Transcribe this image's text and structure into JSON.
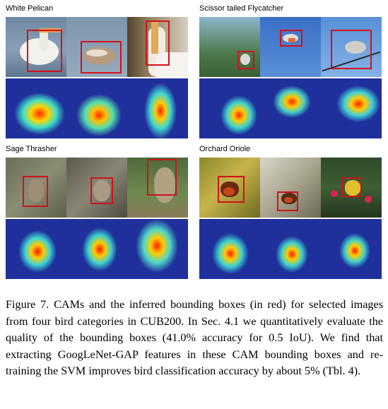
{
  "panels": [
    {
      "title": "White Pelican"
    },
    {
      "title": "Scissor tailed Flycatcher"
    },
    {
      "title": "Sage Thrasher"
    },
    {
      "title": "Orchard Oriole"
    }
  ],
  "caption": "Figure 7. CAMs and the inferred bounding boxes (in red) for se­lected images from four bird categories in CUB200. In Sec. 4.1 we quantitatively evaluate the quality of the bounding boxes (41.0% accuracy for 0.5 IoU). We find that extracting GoogLeNet-GAP features in these CAM bounding boxes and re-training the SVM improves bird classification accuracy by about 5% (Tbl. 4).",
  "colors": {
    "bbox": "#d0121b",
    "heatmap_background": "#1f2f9c"
  }
}
